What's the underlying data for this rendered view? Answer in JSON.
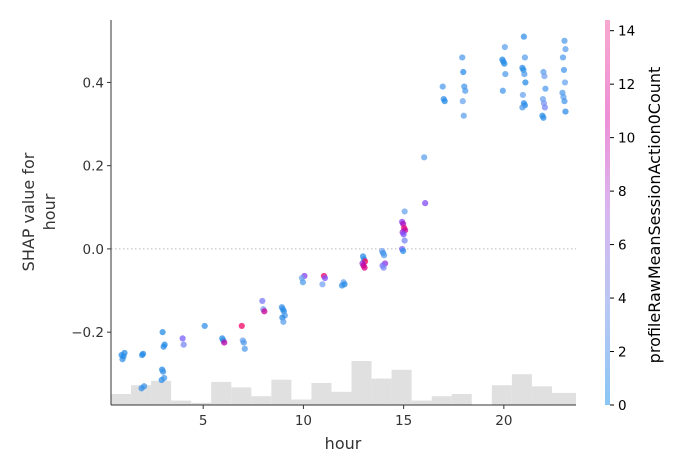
{
  "chart_data": {
    "type": "scatter",
    "title": "",
    "xlabel": "hour",
    "ylabel_lines": [
      "SHAP value for",
      "hour"
    ],
    "xlim": [
      0.4,
      23.6
    ],
    "ylim": [
      -0.375,
      0.55
    ],
    "xticks": [
      5,
      10,
      15,
      20
    ],
    "xtick_labels": [
      "5",
      "10",
      "15",
      "20"
    ],
    "yticks": [
      -0.2,
      0.0,
      0.2,
      0.4
    ],
    "ytick_labels": [
      "−0.2",
      "0.0",
      "0.2",
      "0.4"
    ],
    "zero_line": true,
    "grid": false,
    "colorbar": {
      "label": "profileRawMeanSessionAction0Count",
      "range": [
        0,
        14.4
      ],
      "ticks": [
        0,
        2,
        4,
        6,
        8,
        10,
        12,
        14
      ],
      "tick_labels": [
        "0",
        "2",
        "4",
        "6",
        "8",
        "10",
        "12",
        "14"
      ],
      "colors": [
        "#8ac6f4",
        "#b8c7f3",
        "#d8b6f0",
        "#ee8fd6",
        "#f8a8cf"
      ]
    },
    "histogram": {
      "bin_edges": [
        0.4,
        1.4,
        2.4,
        3.4,
        4.4,
        5.4,
        6.4,
        7.4,
        8.4,
        9.4,
        10.4,
        11.4,
        12.4,
        13.4,
        14.4,
        15.4,
        16.4,
        17.4,
        18.4,
        19.4,
        20.4,
        21.4,
        22.4,
        23.6
      ],
      "counts": [
        10,
        18,
        22,
        4,
        2,
        21,
        16,
        8,
        23,
        5,
        20,
        12,
        40,
        24,
        32,
        4,
        8,
        10,
        0,
        18,
        28,
        17,
        11
      ],
      "color": "#e0e0e0"
    },
    "points": [
      {
        "x": 1,
        "y": -0.255,
        "c": 0.3
      },
      {
        "x": 1,
        "y": -0.265,
        "c": 0.5
      },
      {
        "x": 1,
        "y": -0.258,
        "c": 0.1
      },
      {
        "x": 1,
        "y": -0.25,
        "c": 0.2
      },
      {
        "x": 2,
        "y": -0.255,
        "c": 0.2
      },
      {
        "x": 2,
        "y": -0.252,
        "c": 0.1
      },
      {
        "x": 2,
        "y": -0.33,
        "c": 0.6
      },
      {
        "x": 2,
        "y": -0.335,
        "c": 0.4
      },
      {
        "x": 3,
        "y": -0.2,
        "c": 0.2
      },
      {
        "x": 3,
        "y": -0.235,
        "c": 0.3
      },
      {
        "x": 3,
        "y": -0.23,
        "c": 0.1
      },
      {
        "x": 3,
        "y": -0.29,
        "c": 0.2
      },
      {
        "x": 3,
        "y": -0.295,
        "c": 0.5
      },
      {
        "x": 3,
        "y": -0.31,
        "c": 0.8
      },
      {
        "x": 3,
        "y": -0.315,
        "c": 0.4
      },
      {
        "x": 4,
        "y": -0.215,
        "c": 4.5
      },
      {
        "x": 4,
        "y": -0.23,
        "c": 3.0
      },
      {
        "x": 5,
        "y": -0.185,
        "c": 0.4
      },
      {
        "x": 6,
        "y": -0.215,
        "c": 0.2
      },
      {
        "x": 6,
        "y": -0.22,
        "c": 0.3
      },
      {
        "x": 6,
        "y": -0.225,
        "c": 9.0
      },
      {
        "x": 7,
        "y": -0.185,
        "c": 11.0
      },
      {
        "x": 7,
        "y": -0.22,
        "c": 1.5
      },
      {
        "x": 7,
        "y": -0.225,
        "c": 1.0
      },
      {
        "x": 7,
        "y": -0.24,
        "c": 1.0
      },
      {
        "x": 8,
        "y": -0.125,
        "c": 3.5
      },
      {
        "x": 8,
        "y": -0.145,
        "c": 2.5
      },
      {
        "x": 8,
        "y": -0.15,
        "c": 9.5
      },
      {
        "x": 9,
        "y": -0.14,
        "c": 0.5
      },
      {
        "x": 9,
        "y": -0.145,
        "c": 0.3
      },
      {
        "x": 9,
        "y": -0.15,
        "c": 0.2
      },
      {
        "x": 9,
        "y": -0.16,
        "c": 1.0
      },
      {
        "x": 9,
        "y": -0.165,
        "c": 0.2
      },
      {
        "x": 9,
        "y": -0.175,
        "c": 1.2
      },
      {
        "x": 10,
        "y": -0.065,
        "c": 6.0
      },
      {
        "x": 10,
        "y": -0.07,
        "c": 1.5
      },
      {
        "x": 10,
        "y": -0.08,
        "c": 1.0
      },
      {
        "x": 11,
        "y": -0.065,
        "c": 11.0
      },
      {
        "x": 11,
        "y": -0.07,
        "c": 5.0
      },
      {
        "x": 11,
        "y": -0.085,
        "c": 2.0
      },
      {
        "x": 12,
        "y": -0.08,
        "c": 1.5
      },
      {
        "x": 12,
        "y": -0.085,
        "c": 0.2
      },
      {
        "x": 12,
        "y": -0.088,
        "c": 0.4
      },
      {
        "x": 13,
        "y": -0.018,
        "c": 0.3
      },
      {
        "x": 13,
        "y": -0.025,
        "c": 0.2
      },
      {
        "x": 13,
        "y": -0.03,
        "c": 11.5
      },
      {
        "x": 13,
        "y": -0.035,
        "c": 7.0
      },
      {
        "x": 13,
        "y": -0.04,
        "c": 9.0
      },
      {
        "x": 13,
        "y": -0.045,
        "c": 10.0
      },
      {
        "x": 14,
        "y": -0.005,
        "c": 2.0
      },
      {
        "x": 14,
        "y": -0.01,
        "c": 0.5
      },
      {
        "x": 14,
        "y": -0.015,
        "c": 1.0
      },
      {
        "x": 14,
        "y": -0.035,
        "c": 6.5
      },
      {
        "x": 14,
        "y": -0.04,
        "c": 4.0
      },
      {
        "x": 14,
        "y": -0.045,
        "c": 3.0
      },
      {
        "x": 15,
        "y": 0.09,
        "c": 1.5
      },
      {
        "x": 15,
        "y": 0.065,
        "c": 6.0
      },
      {
        "x": 15,
        "y": 0.06,
        "c": 8.0
      },
      {
        "x": 15,
        "y": 0.05,
        "c": 10.5
      },
      {
        "x": 15,
        "y": 0.045,
        "c": 9.5
      },
      {
        "x": 15,
        "y": 0.04,
        "c": 7.0
      },
      {
        "x": 15,
        "y": 0.035,
        "c": 5.0
      },
      {
        "x": 15,
        "y": 0.02,
        "c": 3.0
      },
      {
        "x": 15,
        "y": 0.0,
        "c": 4.5
      },
      {
        "x": 15,
        "y": -0.005,
        "c": 0.3
      },
      {
        "x": 16,
        "y": 0.22,
        "c": 1.2
      },
      {
        "x": 16,
        "y": 0.11,
        "c": 5.5
      },
      {
        "x": 17,
        "y": 0.39,
        "c": 1.0
      },
      {
        "x": 17,
        "y": 0.36,
        "c": 0.5
      },
      {
        "x": 17,
        "y": 0.355,
        "c": 0.2
      },
      {
        "x": 18,
        "y": 0.46,
        "c": 1.0
      },
      {
        "x": 18,
        "y": 0.425,
        "c": 0.3
      },
      {
        "x": 18,
        "y": 0.39,
        "c": 0.8
      },
      {
        "x": 18,
        "y": 0.38,
        "c": 1.0
      },
      {
        "x": 18,
        "y": 0.355,
        "c": 1.5
      },
      {
        "x": 18,
        "y": 0.32,
        "c": 1.2
      },
      {
        "x": 20,
        "y": 0.485,
        "c": 1.2
      },
      {
        "x": 20,
        "y": 0.455,
        "c": 0.2
      },
      {
        "x": 20,
        "y": 0.45,
        "c": 0.3
      },
      {
        "x": 20,
        "y": 0.445,
        "c": 0.2
      },
      {
        "x": 20,
        "y": 0.42,
        "c": 1.0
      },
      {
        "x": 20,
        "y": 0.38,
        "c": 0.8
      },
      {
        "x": 21,
        "y": 0.51,
        "c": 0.4
      },
      {
        "x": 21,
        "y": 0.46,
        "c": 1.2
      },
      {
        "x": 21,
        "y": 0.435,
        "c": 0.3
      },
      {
        "x": 21,
        "y": 0.43,
        "c": 0.2
      },
      {
        "x": 21,
        "y": 0.42,
        "c": 1.0
      },
      {
        "x": 21,
        "y": 0.4,
        "c": 0.2
      },
      {
        "x": 21,
        "y": 0.37,
        "c": 1.5
      },
      {
        "x": 21,
        "y": 0.35,
        "c": 0.3
      },
      {
        "x": 21,
        "y": 0.345,
        "c": 0.2
      },
      {
        "x": 21,
        "y": 0.34,
        "c": 1.0
      },
      {
        "x": 22,
        "y": 0.425,
        "c": 1.2
      },
      {
        "x": 22,
        "y": 0.415,
        "c": 2.0
      },
      {
        "x": 22,
        "y": 0.385,
        "c": 1.0
      },
      {
        "x": 22,
        "y": 0.36,
        "c": 1.5
      },
      {
        "x": 22,
        "y": 0.35,
        "c": 2.5
      },
      {
        "x": 22,
        "y": 0.34,
        "c": 3.0
      },
      {
        "x": 22,
        "y": 0.32,
        "c": 0.2
      },
      {
        "x": 22,
        "y": 0.315,
        "c": 0.3
      },
      {
        "x": 23,
        "y": 0.5,
        "c": 1.0
      },
      {
        "x": 23,
        "y": 0.48,
        "c": 1.2
      },
      {
        "x": 23,
        "y": 0.46,
        "c": 1.0
      },
      {
        "x": 23,
        "y": 0.43,
        "c": 0.8
      },
      {
        "x": 23,
        "y": 0.4,
        "c": 1.5
      },
      {
        "x": 23,
        "y": 0.375,
        "c": 1.0
      },
      {
        "x": 23,
        "y": 0.365,
        "c": 1.2
      },
      {
        "x": 23,
        "y": 0.355,
        "c": 0.8
      },
      {
        "x": 23,
        "y": 0.33,
        "c": 0.3
      }
    ]
  }
}
